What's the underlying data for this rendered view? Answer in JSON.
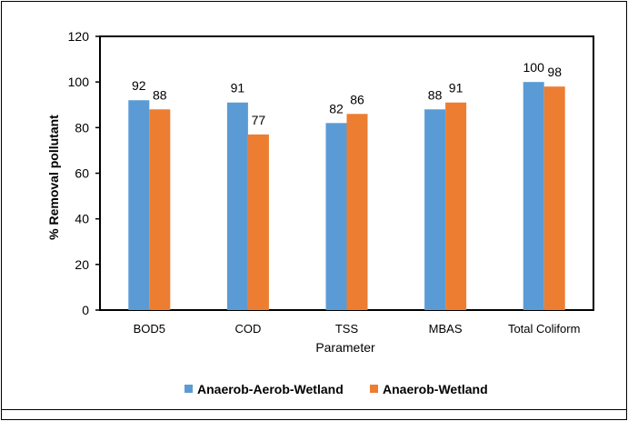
{
  "chart_data": {
    "type": "bar",
    "title": "",
    "xlabel": "Parameter",
    "ylabel": "% Removal pollutant",
    "categories": [
      "BOD5",
      "COD",
      "TSS",
      "MBAS",
      "Total Coliform"
    ],
    "series": [
      {
        "name": "Anaerob-Aerob-Wetland",
        "values": [
          92,
          91,
          82,
          88,
          100
        ],
        "color": "#5b9bd5"
      },
      {
        "name": "Anaerob-Wetland",
        "values": [
          88,
          77,
          86,
          91,
          98
        ],
        "color": "#ed7d31"
      }
    ],
    "ylim": [
      0,
      120
    ],
    "yticks": [
      0,
      20,
      40,
      60,
      80,
      100,
      120
    ],
    "grid": false,
    "legend": "bottom",
    "data_labels": true
  }
}
